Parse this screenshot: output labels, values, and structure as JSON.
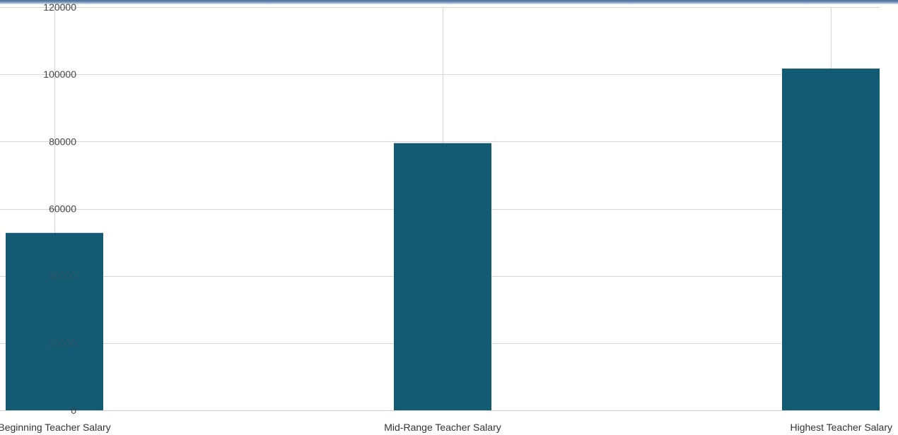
{
  "chart_data": {
    "type": "bar",
    "categories": [
      "Beginning Teacher Salary",
      "Mid-Range Teacher Salary",
      "Highest Teacher Salary"
    ],
    "values": [
      52800,
      79500,
      101700
    ],
    "title": "",
    "xlabel": "",
    "ylabel": "",
    "ylim": [
      0,
      120000
    ],
    "yticks": [
      0,
      20000,
      40000,
      60000,
      80000,
      100000,
      120000
    ],
    "grid": true,
    "legend": false,
    "bar_color": "#135b73",
    "grid_color": "#d6d6d6"
  }
}
